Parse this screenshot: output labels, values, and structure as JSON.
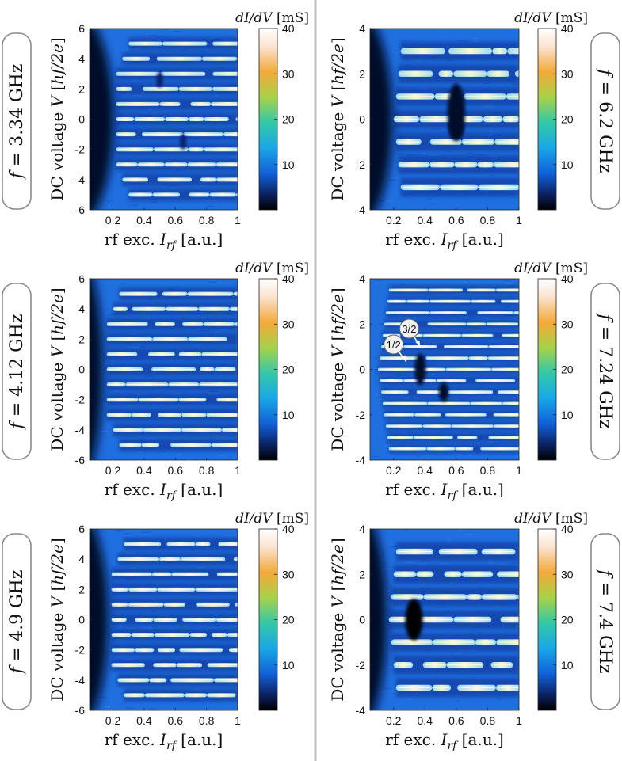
{
  "figure": {
    "divider_color": "#bdbdbd",
    "colorscale": [
      "#000000",
      "#0b1f5c",
      "#1160d6",
      "#1aa6e6",
      "#34c8a8",
      "#a6d24a",
      "#f3a93a",
      "#fbe3d0",
      "#ffffff"
    ]
  },
  "chart_data": [
    {
      "type": "heatmap",
      "panel": "left-top",
      "frequency_label": "f = 3.34 GHz",
      "xlabel": "rf exc. I_rf [a.u.]",
      "ylabel": "DC voltage V [hf/2e]",
      "xlim": [
        0.05,
        1.0
      ],
      "ylim": [
        -6,
        6
      ],
      "xticks": [
        "0.2",
        "0.4",
        "0.6",
        "0.8",
        "1"
      ],
      "xtick_values": [
        0.2,
        0.4,
        0.6,
        0.8,
        1.0
      ],
      "yticks": [
        "6",
        "4",
        "2",
        "0",
        "-2",
        "-4",
        "-6"
      ],
      "ytick_values": [
        6,
        4,
        2,
        0,
        -2,
        -4,
        -6
      ],
      "colorbar": {
        "label": "dI/dV [mS]",
        "ticks": [
          "40",
          "30",
          "20",
          "10"
        ],
        "tick_values": [
          40,
          30,
          20,
          10
        ],
        "range": [
          0,
          40
        ]
      },
      "steps": [
        -5,
        -4,
        -3,
        -2,
        -1,
        0,
        1,
        2,
        3,
        4,
        5
      ],
      "dark_region_edge": 0.13,
      "step_spacing": 1
    },
    {
      "type": "heatmap",
      "panel": "right-top",
      "frequency_label": "f = 6.2 GHz",
      "xlabel": "rf exc. I_rf [a.u.]",
      "ylabel": "DC voltage V [hf/2e]",
      "xlim": [
        0.05,
        1.0
      ],
      "ylim": [
        -4,
        4
      ],
      "xticks": [
        "0.2",
        "0.4",
        "0.6",
        "0.8",
        "1"
      ],
      "xtick_values": [
        0.2,
        0.4,
        0.6,
        0.8,
        1.0
      ],
      "yticks": [
        "4",
        "2",
        "0",
        "-2",
        "-4"
      ],
      "ytick_values": [
        4,
        2,
        0,
        -2,
        -4
      ],
      "colorbar": {
        "label": "dI/dV [mS]",
        "ticks": [
          "40",
          "30",
          "20",
          "10"
        ],
        "tick_values": [
          40,
          30,
          20,
          10
        ],
        "range": [
          0,
          40
        ]
      },
      "steps": [
        -3,
        -2,
        -1,
        0,
        1,
        2,
        3
      ],
      "dark_region_edge": 0.12,
      "step_spacing": 1
    },
    {
      "type": "heatmap",
      "panel": "left-middle",
      "frequency_label": "f = 4.12 GHz",
      "xlabel": "rf exc. I_rf [a.u.]",
      "ylabel": "DC voltage V [hf/2e]",
      "xlim": [
        0.05,
        1.0
      ],
      "ylim": [
        -6,
        6
      ],
      "xticks": [
        "0.2",
        "0.4",
        "0.6",
        "0.8",
        "1"
      ],
      "xtick_values": [
        0.2,
        0.4,
        0.6,
        0.8,
        1.0
      ],
      "yticks": [
        "6",
        "4",
        "2",
        "0",
        "-2",
        "-4",
        "-6"
      ],
      "ytick_values": [
        6,
        4,
        2,
        0,
        -2,
        -4,
        -6
      ],
      "colorbar": {
        "label": "dI/dV [mS]",
        "ticks": [
          "40",
          "30",
          "20",
          "10"
        ],
        "tick_values": [
          40,
          30,
          20,
          10
        ],
        "range": [
          0,
          40
        ]
      },
      "steps": [
        -5,
        -4,
        -3,
        -2,
        -1,
        0,
        1,
        2,
        3,
        4,
        5
      ],
      "dark_region_edge": 0.07,
      "step_spacing": 1
    },
    {
      "type": "heatmap",
      "panel": "right-middle",
      "frequency_label": "f = 7.24 GHz",
      "xlabel": "rf exc. I_rf [a.u.]",
      "ylabel": "DC voltage V [hf/2e]",
      "xlim": [
        0.05,
        1.0
      ],
      "ylim": [
        -4,
        4
      ],
      "xticks": [
        "0.2",
        "0.4",
        "0.6",
        "0.8",
        "1"
      ],
      "xtick_values": [
        0.2,
        0.4,
        0.6,
        0.8,
        1.0
      ],
      "yticks": [
        "4",
        "2",
        "0",
        "-2",
        "-4"
      ],
      "ytick_values": [
        4,
        2,
        0,
        -2,
        -4
      ],
      "colorbar": {
        "label": "dI/dV [mS]",
        "ticks": [
          "40",
          "30",
          "20",
          "10"
        ],
        "tick_values": [
          40,
          30,
          20,
          10
        ],
        "range": [
          0,
          40
        ]
      },
      "steps": [
        -3.5,
        -2.5,
        -1.5,
        -0.5,
        0.5,
        1.5,
        2.5,
        3.5,
        -3,
        -2,
        -1,
        0,
        1,
        2,
        3
      ],
      "dark_region_edge": 0.0,
      "step_spacing": 0.5,
      "annotations": [
        {
          "text": "1/2",
          "x": 0.2,
          "y": 1.1,
          "arrow_to": [
            0.28,
            0.35
          ]
        },
        {
          "text": "3/2",
          "x": 0.3,
          "y": 1.8,
          "arrow_to": [
            0.37,
            1.0
          ]
        }
      ]
    },
    {
      "type": "heatmap",
      "panel": "left-bottom",
      "frequency_label": "f = 4.9 GHz",
      "xlabel": "rf exc. I_rf [a.u.]",
      "ylabel": "DC voltage V [hf/2e]",
      "xlim": [
        0.05,
        1.0
      ],
      "ylim": [
        -6,
        6
      ],
      "xticks": [
        "0.2",
        "0.4",
        "0.6",
        "0.8",
        "1"
      ],
      "xtick_values": [
        0.2,
        0.4,
        0.6,
        0.8,
        1.0
      ],
      "yticks": [
        "6",
        "4",
        "2",
        "0",
        "-2",
        "-4",
        "-6"
      ],
      "ytick_values": [
        6,
        4,
        2,
        0,
        -2,
        -4,
        -6
      ],
      "colorbar": {
        "label": "dI/dV [mS]",
        "ticks": [
          "40",
          "30",
          "20",
          "10"
        ],
        "tick_values": [
          40,
          30,
          20,
          10
        ],
        "range": [
          0,
          40
        ]
      },
      "steps": [
        -5,
        -4,
        -3,
        -2,
        -1,
        0,
        1,
        2,
        3,
        4,
        5
      ],
      "dark_region_edge": 0.1,
      "step_spacing": 1
    },
    {
      "type": "heatmap",
      "panel": "right-bottom",
      "frequency_label": "f = 7.4 GHz",
      "xlabel": "rf exc. I_rf [a.u.]",
      "ylabel": "DC voltage V [hf/2e]",
      "xlim": [
        0.05,
        1.0
      ],
      "ylim": [
        -4,
        4
      ],
      "xticks": [
        "0.2",
        "0.4",
        "0.6",
        "0.8",
        "1"
      ],
      "xtick_values": [
        0.2,
        0.4,
        0.6,
        0.8,
        1.0
      ],
      "yticks": [
        "4",
        "2",
        "0",
        "-2",
        "-4"
      ],
      "ytick_values": [
        4,
        2,
        0,
        -2,
        -4
      ],
      "colorbar": {
        "label": "dI/dV [mS]",
        "ticks": [
          "40",
          "30",
          "20",
          "10"
        ],
        "tick_values": [
          40,
          30,
          20,
          10
        ],
        "range": [
          0,
          40
        ]
      },
      "steps": [
        -3,
        -2,
        -1,
        0,
        1,
        2,
        3
      ],
      "dark_region_edge": 0.09,
      "step_spacing": 1
    }
  ]
}
